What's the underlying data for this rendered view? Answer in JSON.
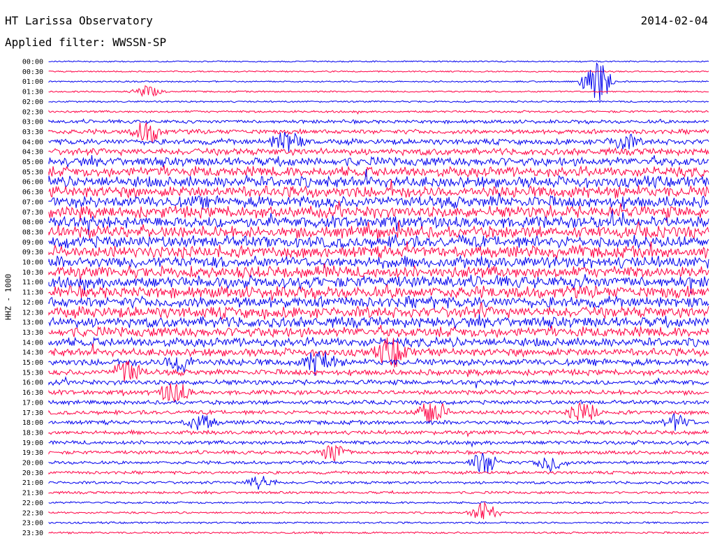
{
  "header": {
    "title": "HT Larissa Observatory",
    "date": "2014-02-04",
    "filter": "Applied filter: WWSSN-SP"
  },
  "chart_data": {
    "type": "line",
    "title": "HT Larissa Observatory",
    "subtitle": "Applied filter: WWSSN-SP",
    "ylabel": "HHZ - 1000",
    "grid": false,
    "colors": [
      "#0000ee",
      "#ff0044"
    ],
    "series_count": 48,
    "categories": [
      "00:00",
      "00:30",
      "01:00",
      "01:30",
      "02:00",
      "02:30",
      "03:00",
      "03:30",
      "04:00",
      "04:30",
      "05:00",
      "05:30",
      "06:00",
      "06:30",
      "07:00",
      "07:30",
      "08:00",
      "08:30",
      "09:00",
      "09:30",
      "10:00",
      "10:30",
      "11:00",
      "11:30",
      "12:00",
      "12:30",
      "13:00",
      "13:30",
      "14:00",
      "14:30",
      "15:00",
      "15:30",
      "16:00",
      "16:30",
      "17:00",
      "17:30",
      "18:00",
      "18:30",
      "19:00",
      "19:30",
      "20:00",
      "20:30",
      "21:00",
      "21:30",
      "22:00",
      "22:30",
      "23:00",
      "23:30"
    ],
    "noise_level": [
      0.05,
      0.05,
      0.06,
      0.07,
      0.08,
      0.12,
      0.25,
      0.35,
      0.45,
      0.55,
      0.75,
      0.85,
      0.95,
      1.0,
      1.0,
      1.0,
      1.0,
      1.0,
      1.0,
      1.0,
      1.0,
      1.0,
      1.0,
      1.0,
      0.95,
      0.95,
      0.9,
      0.85,
      0.75,
      0.65,
      0.55,
      0.45,
      0.4,
      0.35,
      0.3,
      0.3,
      0.3,
      0.3,
      0.28,
      0.25,
      0.22,
      0.2,
      0.18,
      0.15,
      0.12,
      0.1,
      0.1,
      0.1
    ],
    "events": [
      {
        "row": 2,
        "x": 0.83,
        "amp": 2.5
      },
      {
        "row": 3,
        "x": 0.15,
        "amp": 0.6
      },
      {
        "row": 7,
        "x": 0.15,
        "amp": 1.2
      },
      {
        "row": 8,
        "x": 0.36,
        "amp": 1.2
      },
      {
        "row": 8,
        "x": 0.87,
        "amp": 0.8
      },
      {
        "row": 29,
        "x": 0.52,
        "amp": 1.5
      },
      {
        "row": 30,
        "x": 0.41,
        "amp": 1.4
      },
      {
        "row": 30,
        "x": 0.2,
        "amp": 1.0
      },
      {
        "row": 31,
        "x": 0.12,
        "amp": 1.3
      },
      {
        "row": 33,
        "x": 0.19,
        "amp": 1.2
      },
      {
        "row": 35,
        "x": 0.58,
        "amp": 1.5
      },
      {
        "row": 35,
        "x": 0.81,
        "amp": 1.1
      },
      {
        "row": 36,
        "x": 0.23,
        "amp": 0.8
      },
      {
        "row": 36,
        "x": 0.95,
        "amp": 0.8
      },
      {
        "row": 39,
        "x": 0.43,
        "amp": 1.0
      },
      {
        "row": 40,
        "x": 0.66,
        "amp": 1.2
      },
      {
        "row": 40,
        "x": 0.76,
        "amp": 0.9
      },
      {
        "row": 42,
        "x": 0.32,
        "amp": 0.7
      },
      {
        "row": 45,
        "x": 0.66,
        "amp": 1.0
      }
    ]
  }
}
